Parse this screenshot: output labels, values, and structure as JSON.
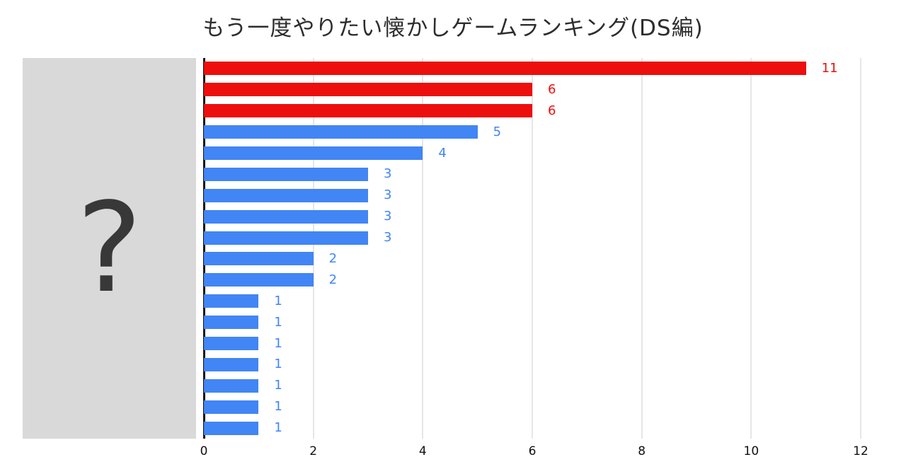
{
  "title": "もう一度やりたい懐かしゲームランキング(DS編)",
  "mask": {
    "label": "?"
  },
  "chart_data": {
    "type": "bar",
    "orientation": "horizontal",
    "title": "もう一度やりたい懐かしゲームランキング(DS編)",
    "categories_hidden": true,
    "values": [
      11,
      6,
      6,
      5,
      4,
      3,
      3,
      3,
      3,
      2,
      2,
      1,
      1,
      1,
      1,
      1,
      1,
      1
    ],
    "colors": [
      "red",
      "red",
      "red",
      "blue",
      "blue",
      "blue",
      "blue",
      "blue",
      "blue",
      "blue",
      "blue",
      "blue",
      "blue",
      "blue",
      "blue",
      "blue",
      "blue",
      "blue"
    ],
    "palette": {
      "red": "#ed0e0e",
      "blue": "#4285f4"
    },
    "x_ticks": [
      0,
      2,
      4,
      6,
      8,
      10,
      12
    ],
    "xlim": [
      0,
      12
    ],
    "grid": true,
    "xlabel": "",
    "ylabel": ""
  }
}
